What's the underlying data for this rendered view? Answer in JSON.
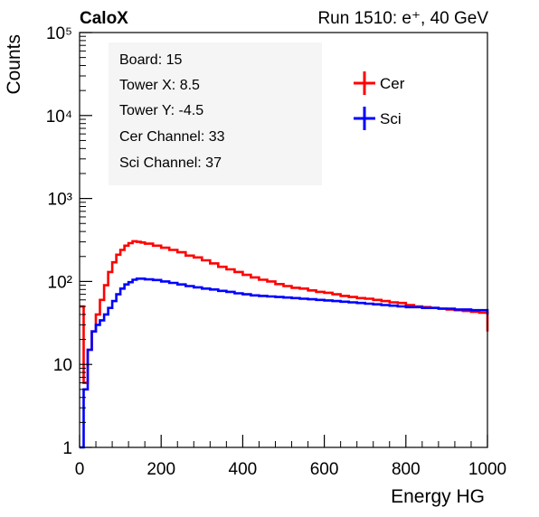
{
  "header": {
    "brand": "CaloX",
    "run_info": "Run 1510: e⁺, 40 GeV"
  },
  "info_box": {
    "lines": [
      "Board: 15",
      "Tower X: 8.5",
      "Tower Y: -4.5",
      "Cer Channel: 33",
      "Sci Channel: 37"
    ]
  },
  "legend": {
    "placement": "top-right",
    "entries": [
      {
        "label": "Cer",
        "color": "#ff0000"
      },
      {
        "label": "Sci",
        "color": "#0000ff"
      }
    ]
  },
  "chart_data": {
    "type": "line",
    "title": "",
    "xlabel": "Energy HG",
    "ylabel": "Counts",
    "xlim": [
      0,
      1000
    ],
    "ylim": [
      1,
      100000
    ],
    "ylog": true,
    "grid": false,
    "x_ticks": [
      "0",
      "200",
      "400",
      "600",
      "800",
      "1000"
    ],
    "y_ticks": [
      {
        "value": 1,
        "label": "1"
      },
      {
        "value": 10,
        "label": "10"
      },
      {
        "value": 100,
        "label": "10²"
      },
      {
        "value": 1000,
        "label": "10³"
      },
      {
        "value": 10000,
        "label": "10⁴"
      },
      {
        "value": 100000,
        "label": "10⁵"
      }
    ],
    "series": [
      {
        "name": "Cer",
        "color": "#ff0000",
        "x": [
          0,
          10,
          20,
          30,
          40,
          50,
          60,
          70,
          80,
          90,
          100,
          110,
          120,
          130,
          140,
          150,
          160,
          180,
          200,
          220,
          240,
          260,
          280,
          300,
          320,
          340,
          360,
          380,
          400,
          420,
          440,
          460,
          480,
          500,
          520,
          540,
          560,
          580,
          600,
          620,
          640,
          660,
          680,
          700,
          720,
          740,
          760,
          780,
          800,
          820,
          840,
          860,
          880,
          900,
          920,
          940,
          960,
          980,
          1000
        ],
        "y": [
          50,
          6,
          15,
          25,
          40,
          60,
          90,
          130,
          170,
          210,
          240,
          270,
          290,
          305,
          300,
          295,
          285,
          270,
          255,
          240,
          225,
          205,
          195,
          180,
          165,
          150,
          140,
          130,
          120,
          112,
          105,
          100,
          93,
          88,
          84,
          82,
          78,
          75,
          73,
          70,
          67,
          65,
          63,
          62,
          60,
          58,
          56,
          55,
          52,
          50,
          49,
          48,
          47,
          46,
          45,
          44,
          43,
          42,
          25
        ]
      },
      {
        "name": "Sci",
        "color": "#0000ff",
        "x": [
          0,
          10,
          20,
          30,
          40,
          50,
          60,
          70,
          80,
          90,
          100,
          110,
          120,
          130,
          140,
          150,
          160,
          180,
          200,
          220,
          240,
          260,
          280,
          300,
          320,
          340,
          360,
          380,
          400,
          420,
          440,
          460,
          480,
          500,
          520,
          540,
          560,
          580,
          600,
          620,
          640,
          660,
          680,
          700,
          720,
          740,
          760,
          780,
          800,
          820,
          840,
          860,
          880,
          900,
          920,
          940,
          960,
          980,
          1000
        ],
        "y": [
          1,
          5,
          15,
          25,
          30,
          34,
          40,
          48,
          58,
          70,
          82,
          92,
          98,
          105,
          108,
          108,
          106,
          104,
          100,
          96,
          92,
          88,
          85,
          82,
          80,
          77,
          75,
          72,
          70,
          68,
          67,
          66,
          65,
          64,
          63,
          62,
          61,
          60,
          59,
          58,
          57,
          56,
          55,
          54,
          53,
          52,
          51,
          50,
          49,
          49,
          48,
          48,
          47,
          47,
          46,
          46,
          45,
          45,
          40
        ]
      }
    ]
  }
}
